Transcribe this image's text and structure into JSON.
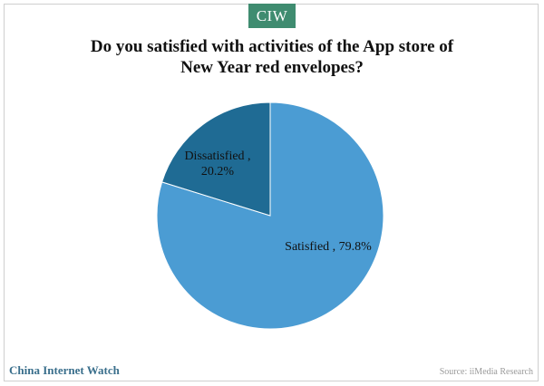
{
  "logo": {
    "text": "CIW",
    "color": "#3f8c70"
  },
  "title_lines": [
    "Do you satisfied with activities of  the App store of",
    "New Year red envelopes?"
  ],
  "chart_data": {
    "type": "pie",
    "title": "Do you satisfied with activities of  the App store of New Year red envelopes?",
    "slices": [
      {
        "label": "Satisfied , 79.8%",
        "category": "Satisfied",
        "value": 79.8,
        "color": "#4b9cd3"
      },
      {
        "label": "Dissatisfied , 20.2%",
        "category": "Dissatisfied",
        "value": 20.2,
        "color": "#1f6b94"
      }
    ],
    "start": "top",
    "direction": "clockwise",
    "legend": "none"
  },
  "footer": {
    "brand": "China Internet Watch",
    "source": "Source: iiMedia Research"
  }
}
